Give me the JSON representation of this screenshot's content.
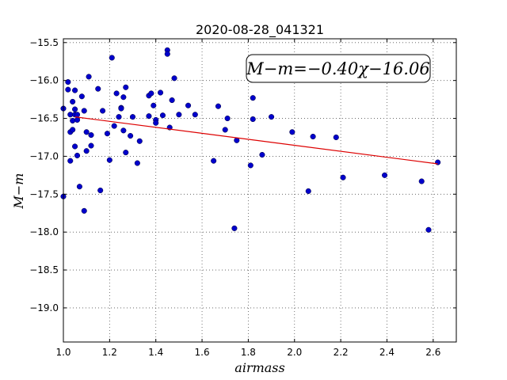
{
  "chart_data": {
    "type": "scatter",
    "title": "2020-08-28_041321",
    "xlabel": "airmass",
    "ylabel": "M−m",
    "xlim": [
      1.0,
      2.7
    ],
    "ylim": [
      -19.45,
      -15.45
    ],
    "y_inverted": true,
    "grid": true,
    "x_ticks": [
      1.0,
      1.2,
      1.4,
      1.6,
      1.8,
      2.0,
      2.2,
      2.4,
      2.6
    ],
    "x_tick_labels": [
      "1.0",
      "1.2",
      "1.4",
      "1.6",
      "1.8",
      "2.0",
      "2.2",
      "2.4",
      "2.6"
    ],
    "y_ticks": [
      -15.5,
      -16.0,
      -16.5,
      -17.0,
      -17.5,
      -18.0,
      -18.5,
      -19.0
    ],
    "y_tick_labels": [
      "−15.5",
      "−16.0",
      "−16.5",
      "−17.0",
      "−17.5",
      "−18.0",
      "−18.5",
      "−19.0"
    ],
    "point_color": "#0000cc",
    "fit_color": "#dd0000",
    "fit_label": "M−m=−0.40χ−16.06",
    "fit_line": {
      "x": [
        1.05,
        2.62
      ],
      "y": [
        -16.48,
        -17.1
      ]
    },
    "points": {
      "x": [
        1.0,
        1.0,
        1.02,
        1.02,
        1.03,
        1.03,
        1.03,
        1.04,
        1.04,
        1.04,
        1.05,
        1.05,
        1.05,
        1.05,
        1.06,
        1.06,
        1.06,
        1.07,
        1.08,
        1.09,
        1.09,
        1.1,
        1.1,
        1.11,
        1.12,
        1.12,
        1.15,
        1.16,
        1.17,
        1.19,
        1.2,
        1.21,
        1.22,
        1.23,
        1.24,
        1.25,
        1.25,
        1.26,
        1.26,
        1.27,
        1.27,
        1.29,
        1.3,
        1.32,
        1.33,
        1.37,
        1.37,
        1.38,
        1.39,
        1.4,
        1.4,
        1.42,
        1.43,
        1.45,
        1.45,
        1.46,
        1.47,
        1.48,
        1.5,
        1.54,
        1.57,
        1.65,
        1.67,
        1.7,
        1.71,
        1.74,
        1.75,
        1.81,
        1.82,
        1.82,
        1.86,
        1.9,
        1.99,
        2.06,
        2.08,
        2.18,
        2.21,
        2.39,
        2.55,
        2.58,
        2.62
      ],
      "y": [
        -16.37,
        -17.53,
        -16.12,
        -16.02,
        -16.68,
        -16.45,
        -17.06,
        -16.28,
        -16.53,
        -16.65,
        -16.13,
        -16.38,
        -16.87,
        -16.45,
        -16.99,
        -16.52,
        -16.45,
        -17.4,
        -16.21,
        -17.72,
        -16.4,
        -16.93,
        -16.68,
        -15.95,
        -16.86,
        -16.72,
        -16.11,
        -17.45,
        -16.4,
        -16.7,
        -17.05,
        -15.7,
        -16.6,
        -16.17,
        -16.48,
        -16.36,
        -16.37,
        -16.66,
        -16.22,
        -16.95,
        -16.09,
        -16.73,
        -16.48,
        -17.09,
        -16.8,
        -16.2,
        -16.47,
        -16.17,
        -16.33,
        -16.52,
        -16.56,
        -16.16,
        -16.46,
        -15.6,
        -15.65,
        -16.62,
        -16.26,
        -15.97,
        -16.45,
        -16.33,
        -16.45,
        -17.06,
        -16.34,
        -16.65,
        -16.5,
        -17.95,
        -16.79,
        -17.12,
        -16.23,
        -16.51,
        -16.98,
        -16.48,
        -16.68,
        -17.46,
        -16.74,
        -16.75,
        -17.28,
        -17.25,
        -17.33,
        -17.97,
        -17.08
      ]
    }
  }
}
